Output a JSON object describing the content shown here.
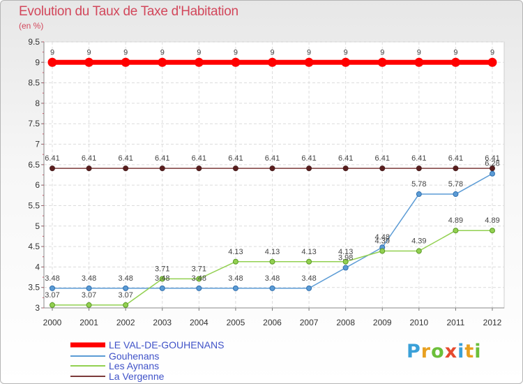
{
  "header": {
    "title": "Evolution du Taux de Taxe d'Habitation",
    "unit": "(en %)"
  },
  "chart_data": {
    "type": "line",
    "title": "Evolution du Taux de Taxe d'Habitation",
    "ylabel": "(en %)",
    "xlabel": "",
    "ylim": [
      3,
      9.5
    ],
    "yticks": [
      3,
      3.5,
      4,
      4.5,
      5,
      5.5,
      6,
      6.5,
      7,
      7.5,
      8,
      8.5,
      9,
      9.5
    ],
    "categories": [
      "2000",
      "2001",
      "2002",
      "2003",
      "2004",
      "2005",
      "2006",
      "2007",
      "2008",
      "2009",
      "2010",
      "2011",
      "2012"
    ],
    "grid": true,
    "legend_position": "bottom-left",
    "series": [
      {
        "name": "LE VAL-DE-GOUHENANS",
        "color": "#ff0000",
        "values": [
          9,
          9,
          9,
          9,
          9,
          9,
          9,
          9,
          9,
          9,
          9,
          9,
          9
        ],
        "labels": [
          "9",
          "9",
          "9",
          "9",
          "9",
          "9",
          "9",
          "9",
          "9",
          "9",
          "9",
          "9",
          "9"
        ]
      },
      {
        "name": "Gouhenans",
        "color": "#5b9bd5",
        "values": [
          3.48,
          3.48,
          3.48,
          3.48,
          3.48,
          3.48,
          3.48,
          3.48,
          3.98,
          4.48,
          5.78,
          5.78,
          6.28
        ],
        "labels": [
          "3.48",
          "3.48",
          "3.48",
          "3.48",
          "3.48",
          "3.48",
          "3.48",
          "3.48",
          "3.98",
          "4.48",
          "5.78",
          "5.78",
          "6.28"
        ]
      },
      {
        "name": "Les Aynans",
        "color": "#92d050",
        "values": [
          3.07,
          3.07,
          3.07,
          3.71,
          3.71,
          4.13,
          4.13,
          4.13,
          4.13,
          4.39,
          4.39,
          4.89,
          4.89
        ],
        "labels": [
          "3.07",
          "3.07",
          "3.07",
          "3.71",
          "3.71",
          "4.13",
          "4.13",
          "4.13",
          "4.13",
          "4.39",
          "4.39",
          "4.89",
          "4.89"
        ]
      },
      {
        "name": "La Vergenne",
        "color": "#7b3a3a",
        "values": [
          6.41,
          6.41,
          6.41,
          6.41,
          6.41,
          6.41,
          6.41,
          6.41,
          6.41,
          6.41,
          6.41,
          6.41,
          6.41
        ],
        "labels": [
          "6.41",
          "6.41",
          "6.41",
          "6.41",
          "6.41",
          "6.41",
          "6.41",
          "6.41",
          "6.41",
          "6.41",
          "6.41",
          "6.41",
          "6.41"
        ]
      }
    ]
  },
  "logo": {
    "text": "Proxiti",
    "colors": [
      "#3aa0d8",
      "#e8a020",
      "#6cbf3a",
      "#e64a2e",
      "#3aa0d8",
      "#e8a020",
      "#6cbf3a"
    ]
  }
}
